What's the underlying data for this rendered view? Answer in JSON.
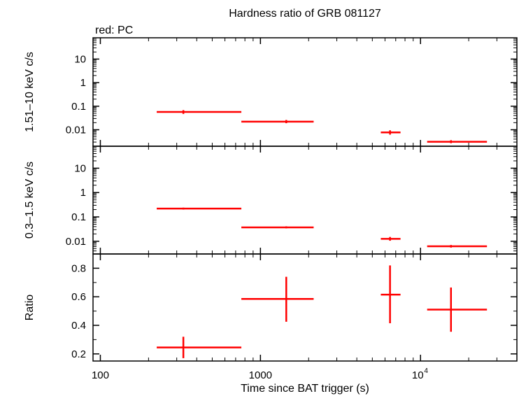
{
  "chart_data": {
    "type": "scatter",
    "title": "Hardness ratio of GRB 081127",
    "subtitle": "red: PC",
    "xlabel": "Time since BAT trigger (s)",
    "x_scale": "log",
    "xlim": [
      90,
      40000
    ],
    "x_ticks": [
      {
        "value": 100,
        "label": "100"
      },
      {
        "value": 1000,
        "label": "1000"
      },
      {
        "value": 10000,
        "label": "10",
        "sup": "4"
      }
    ],
    "colors": {
      "series": "#ff0000",
      "axes": "#000000"
    },
    "grid": false,
    "panels": [
      {
        "ylabel": "1.51–10 keV c/s",
        "y_scale": "log",
        "ylim": [
          0.002,
          80
        ],
        "y_ticks": [
          {
            "value": 10,
            "label": "10"
          },
          {
            "value": 1,
            "label": "1"
          },
          {
            "value": 0.1,
            "label": "0.1"
          },
          {
            "value": 0.01,
            "label": "0.01"
          }
        ],
        "points": [
          {
            "x": 330,
            "x_lo": 225,
            "x_hi": 760,
            "y": 0.057,
            "y_lo": 0.047,
            "y_hi": 0.068
          },
          {
            "x": 1450,
            "x_lo": 760,
            "x_hi": 2150,
            "y": 0.022,
            "y_lo": 0.019,
            "y_hi": 0.026
          },
          {
            "x": 6450,
            "x_lo": 5650,
            "x_hi": 7500,
            "y": 0.0077,
            "y_lo": 0.0062,
            "y_hi": 0.0095
          },
          {
            "x": 15500,
            "x_lo": 11000,
            "x_hi": 26000,
            "y": 0.0031,
            "y_lo": 0.0027,
            "y_hi": 0.0036
          }
        ]
      },
      {
        "ylabel": "0.3–1.5 keV c/s",
        "y_scale": "log",
        "ylim": [
          0.003,
          80
        ],
        "y_ticks": [
          {
            "value": 10,
            "label": "10"
          },
          {
            "value": 1,
            "label": "1"
          },
          {
            "value": 0.1,
            "label": "0.1"
          },
          {
            "value": 0.01,
            "label": "0.01"
          }
        ],
        "points": [
          {
            "x": 330,
            "x_lo": 225,
            "x_hi": 760,
            "y": 0.22,
            "y_lo": 0.2,
            "y_hi": 0.24
          },
          {
            "x": 1450,
            "x_lo": 760,
            "x_hi": 2150,
            "y": 0.037,
            "y_lo": 0.034,
            "y_hi": 0.041
          },
          {
            "x": 6450,
            "x_lo": 5650,
            "x_hi": 7500,
            "y": 0.0125,
            "y_lo": 0.0105,
            "y_hi": 0.015
          },
          {
            "x": 15500,
            "x_lo": 11000,
            "x_hi": 26000,
            "y": 0.0062,
            "y_lo": 0.0055,
            "y_hi": 0.007
          }
        ]
      },
      {
        "ylabel": "Ratio",
        "y_scale": "linear",
        "ylim": [
          0.15,
          0.9
        ],
        "y_ticks": [
          {
            "value": 0.8,
            "label": "0.8"
          },
          {
            "value": 0.6,
            "label": "0.6"
          },
          {
            "value": 0.4,
            "label": "0.4"
          },
          {
            "value": 0.2,
            "label": "0.2"
          }
        ],
        "points": [
          {
            "x": 330,
            "x_lo": 225,
            "x_hi": 760,
            "y": 0.245,
            "y_lo": 0.17,
            "y_hi": 0.32
          },
          {
            "x": 1450,
            "x_lo": 760,
            "x_hi": 2150,
            "y": 0.585,
            "y_lo": 0.425,
            "y_hi": 0.74
          },
          {
            "x": 6450,
            "x_lo": 5650,
            "x_hi": 7500,
            "y": 0.615,
            "y_lo": 0.415,
            "y_hi": 0.82
          },
          {
            "x": 15500,
            "x_lo": 11000,
            "x_hi": 26000,
            "y": 0.51,
            "y_lo": 0.355,
            "y_hi": 0.665
          }
        ]
      }
    ]
  }
}
